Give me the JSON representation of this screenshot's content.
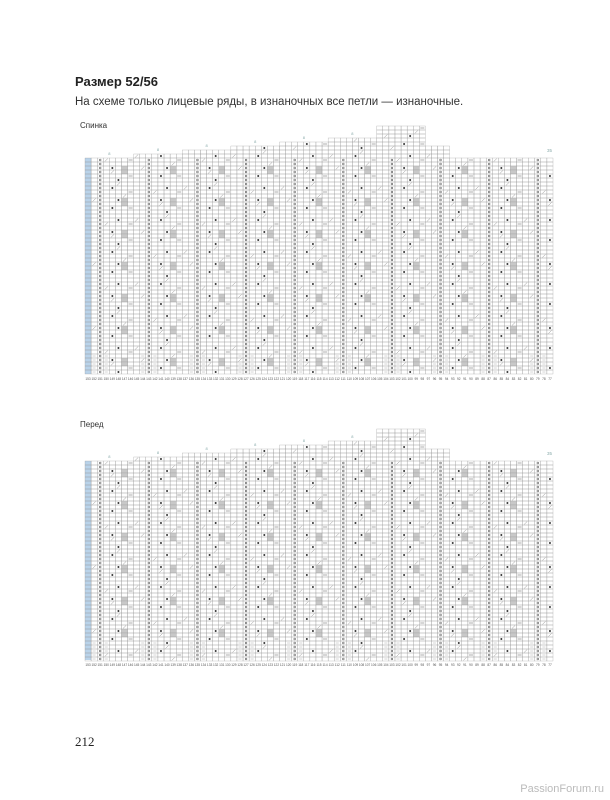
{
  "title": "Размер 52/56",
  "note": "На схеме только лицевые ряды, в изнаночных все петли — изнаночные.",
  "charts": [
    {
      "label": "Спинка",
      "step_label": "8",
      "corner_label": "35",
      "column_range": [
        153,
        77
      ]
    },
    {
      "label": "Перед",
      "step_label": "8",
      "corner_label": "35",
      "column_range": [
        153,
        77
      ]
    }
  ],
  "colors": {
    "grid": "#9a9a9a",
    "edge_column": "#b9d3ea",
    "shaded_cell": "#c8c8c8",
    "symbol": "#333333"
  },
  "page_number": "212",
  "watermark": "PassionForum.ru"
}
